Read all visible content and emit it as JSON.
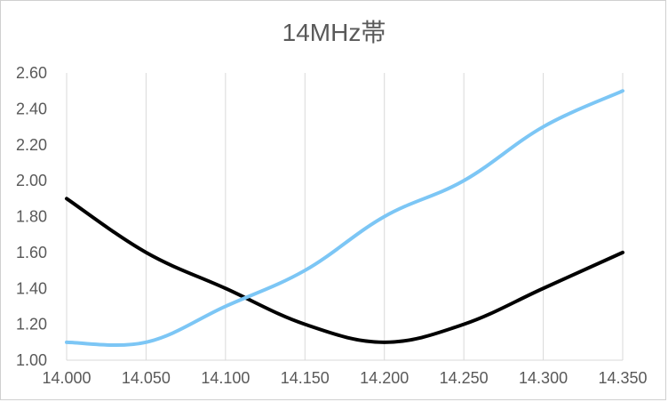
{
  "chart_data": {
    "type": "line",
    "title": "14MHz帯",
    "xlabel": "",
    "ylabel": "",
    "x": [
      14.0,
      14.05,
      14.1,
      14.15,
      14.2,
      14.25,
      14.3,
      14.35
    ],
    "x_tick_labels": [
      "14.000",
      "14.050",
      "14.100",
      "14.150",
      "14.200",
      "14.250",
      "14.300",
      "14.350"
    ],
    "xlim": [
      14.0,
      14.35
    ],
    "ylim": [
      1.0,
      2.6
    ],
    "y_ticks": [
      1.0,
      1.2,
      1.4,
      1.6,
      1.8,
      2.0,
      2.2,
      2.4,
      2.6
    ],
    "y_tick_labels": [
      "1.00",
      "1.20",
      "1.40",
      "1.60",
      "1.80",
      "2.00",
      "2.20",
      "2.40",
      "2.60"
    ],
    "grid": "vertical",
    "legend": "none",
    "series": [
      {
        "color": "#000000",
        "values": [
          1.9,
          1.6,
          1.4,
          1.2,
          1.1,
          1.2,
          1.4,
          1.6
        ]
      },
      {
        "color": "#7cc6f5",
        "values": [
          1.1,
          1.1,
          1.3,
          1.5,
          1.8,
          2.0,
          2.3,
          2.5
        ]
      }
    ]
  }
}
